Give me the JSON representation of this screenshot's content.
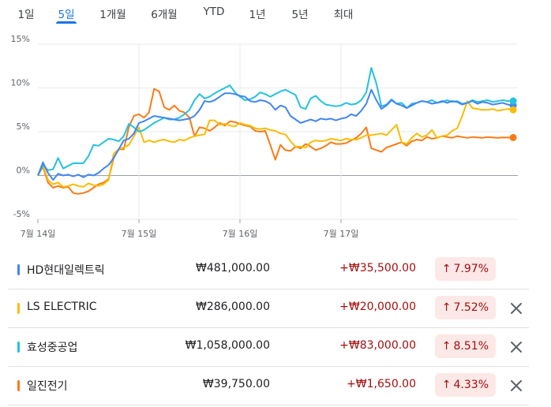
{
  "tabs": [
    {
      "label": "1일",
      "active": false
    },
    {
      "label": "5일",
      "active": true
    },
    {
      "label": "1개월",
      "active": false
    },
    {
      "label": "6개월",
      "active": false
    },
    {
      "label": "YTD",
      "active": false
    },
    {
      "label": "1년",
      "active": false
    },
    {
      "label": "5년",
      "active": false
    },
    {
      "label": "최대",
      "active": false
    }
  ],
  "chart_data": {
    "type": "line",
    "y_unit": "%",
    "ylim": [
      -5,
      15
    ],
    "y_ticks": [
      -5,
      0,
      5,
      10,
      15
    ],
    "y_tick_labels": [
      "-5%",
      "0%",
      "5%",
      "10%",
      "15%"
    ],
    "x_ticks": [
      0,
      20,
      40,
      60
    ],
    "x_tick_labels": [
      "7월 14일",
      "7월 15일",
      "7월 16일",
      "7월 17일"
    ],
    "xlim": [
      0,
      95
    ],
    "grid": true,
    "series": [
      {
        "name": "HD현대일렉트릭",
        "color": "#4285f4",
        "x": [
          0,
          1,
          2,
          3,
          4,
          5,
          6,
          7,
          8,
          9,
          10,
          11,
          12,
          13,
          14,
          15,
          16,
          17,
          18,
          19,
          20,
          21,
          22,
          23,
          24,
          25,
          26,
          27,
          28,
          29,
          30,
          31,
          32,
          33,
          34,
          35,
          36,
          37,
          38,
          39,
          40,
          41,
          42,
          43,
          44,
          45,
          46,
          47,
          48,
          49,
          50,
          51,
          52,
          53,
          54,
          55,
          56,
          57,
          58,
          59,
          60,
          61,
          62,
          63,
          64,
          65,
          66,
          67,
          68,
          69,
          70,
          71,
          72,
          73,
          74,
          75,
          76,
          77,
          78,
          79,
          80,
          81,
          82,
          83,
          84,
          85,
          86,
          87,
          88,
          89,
          90,
          91,
          92,
          93,
          94
        ],
        "values": [
          0,
          1.5,
          0.3,
          -0.5,
          0.2,
          0,
          0.1,
          -0.1,
          0.1,
          -0.2,
          0.1,
          0,
          0.3,
          0.8,
          1.2,
          2,
          3,
          4,
          4.2,
          4.8,
          6,
          6.2,
          6.5,
          6.8,
          6.7,
          6.6,
          6.5,
          6.4,
          6.3,
          6.4,
          6.5,
          6.8,
          7.5,
          8.5,
          8.4,
          8.6,
          9,
          9.4,
          9.4,
          9.3,
          9.1,
          9,
          8.5,
          8.4,
          8.6,
          8.5,
          8.2,
          7.5,
          8,
          7.8,
          6.8,
          6.4,
          6,
          6.2,
          6.4,
          6.2,
          6.5,
          6.4,
          6.5,
          6.3,
          6.5,
          6.6,
          7,
          6.8,
          7.4,
          8.2,
          9.8,
          8.6,
          7.6,
          8,
          8.6,
          8.2,
          8,
          7.7,
          8,
          8.3,
          8.5,
          8.4,
          8.2,
          8.3,
          8.5,
          8.3,
          8.5,
          8.4,
          8.1,
          8.3,
          8.5,
          8.2,
          8.4,
          8.3,
          8.1,
          8.2,
          8.3,
          8.1,
          8.0
        ]
      },
      {
        "name": "LS ELECTRIC",
        "color": "#fbbc04",
        "x": [
          0,
          1,
          2,
          3,
          4,
          5,
          6,
          7,
          8,
          9,
          10,
          11,
          12,
          13,
          14,
          15,
          16,
          17,
          18,
          19,
          20,
          21,
          22,
          23,
          24,
          25,
          26,
          27,
          28,
          29,
          30,
          31,
          32,
          33,
          34,
          35,
          36,
          37,
          38,
          39,
          40,
          41,
          42,
          43,
          44,
          45,
          46,
          47,
          48,
          49,
          50,
          51,
          52,
          53,
          54,
          55,
          56,
          57,
          58,
          59,
          60,
          61,
          62,
          63,
          64,
          65,
          66,
          67,
          68,
          69,
          70,
          71,
          72,
          73,
          74,
          75,
          76,
          77,
          78,
          79,
          80,
          81,
          82,
          83,
          84,
          85,
          86,
          87,
          88,
          89,
          90,
          91,
          92,
          93,
          94
        ],
        "values": [
          0,
          1.2,
          -0.5,
          -1,
          -0.8,
          -1.3,
          -1.2,
          -1,
          -1.2,
          -1.3,
          -0.9,
          -1.1,
          -1.2,
          -1,
          -0.5,
          2.5,
          3,
          3.2,
          3.5,
          4.5,
          5.5,
          3.8,
          4,
          3.8,
          4,
          4.1,
          3.9,
          3.8,
          4.1,
          4,
          4.3,
          4.5,
          4.6,
          4.7,
          6.3,
          6.3,
          5.8,
          5.9,
          5.7,
          5.6,
          6,
          5.8,
          5.7,
          5.4,
          5.3,
          5.4,
          5.2,
          5.1,
          4.8,
          4.7,
          3.9,
          3.3,
          3.3,
          3.2,
          3.8,
          4,
          3.9,
          4,
          4.2,
          4.1,
          4,
          4.2,
          4.1,
          4.1,
          4.3,
          4.6,
          4.6,
          4.7,
          4.8,
          4.6,
          5.2,
          5.8,
          3.8,
          3.6,
          4.3,
          4.8,
          4.4,
          4.6,
          5.2,
          4.3,
          4.5,
          4.6,
          5.1,
          5.4,
          6.8,
          8.5,
          7.7,
          7.6,
          7.5,
          7.5,
          7.6,
          7.4,
          7.5,
          7.6,
          7.5
        ]
      },
      {
        "name": "효성중공업",
        "color": "#24c1e0",
        "x": [
          0,
          1,
          2,
          3,
          4,
          5,
          6,
          7,
          8,
          9,
          10,
          11,
          12,
          13,
          14,
          15,
          16,
          17,
          18,
          19,
          20,
          21,
          22,
          23,
          24,
          25,
          26,
          27,
          28,
          29,
          30,
          31,
          32,
          33,
          34,
          35,
          36,
          37,
          38,
          39,
          40,
          41,
          42,
          43,
          44,
          45,
          46,
          47,
          48,
          49,
          50,
          51,
          52,
          53,
          54,
          55,
          56,
          57,
          58,
          59,
          60,
          61,
          62,
          63,
          64,
          65,
          66,
          67,
          68,
          69,
          70,
          71,
          72,
          73,
          74,
          75,
          76,
          77,
          78,
          79,
          80,
          81,
          82,
          83,
          84,
          85,
          86,
          87,
          88,
          89,
          90,
          91,
          92,
          93,
          94
        ],
        "values": [
          0,
          1.2,
          0.6,
          0.7,
          2,
          0.8,
          1.1,
          1.4,
          1.4,
          1.4,
          2.2,
          3.5,
          3.4,
          3.8,
          4.2,
          4.1,
          3.9,
          4.5,
          5.9,
          5.5,
          5,
          5.2,
          5.6,
          6,
          6.3,
          6.6,
          6.4,
          6.4,
          6.6,
          7,
          7.5,
          8.6,
          9.3,
          8.8,
          9,
          9.4,
          9.7,
          10,
          10.3,
          9.5,
          9,
          8.6,
          8.7,
          9,
          9.5,
          9.3,
          9,
          9.3,
          9.6,
          9.8,
          9.5,
          9.2,
          7.8,
          7.6,
          8.8,
          9.1,
          8.5,
          8.1,
          8,
          7.9,
          8,
          8.3,
          8.1,
          8.2,
          8.6,
          9.5,
          12.3,
          10.5,
          7.9,
          8.1,
          8.7,
          8.2,
          8.3,
          7.7,
          8.2,
          8.3,
          8.5,
          8.4,
          8.6,
          8.3,
          8.4,
          8.6,
          8.4,
          8.5,
          8.2,
          8.3,
          8.6,
          8.4,
          8.5,
          8.6,
          8.4,
          8.5,
          8.6,
          8.5,
          8.51
        ]
      },
      {
        "name": "일진전기",
        "color": "#fa7b17",
        "x": [
          0,
          1,
          2,
          3,
          4,
          5,
          6,
          7,
          8,
          9,
          10,
          11,
          12,
          13,
          14,
          15,
          16,
          17,
          18,
          19,
          20,
          21,
          22,
          23,
          24,
          25,
          26,
          27,
          28,
          29,
          30,
          31,
          32,
          33,
          34,
          35,
          36,
          37,
          38,
          39,
          40,
          41,
          42,
          43,
          44,
          45,
          46,
          47,
          48,
          49,
          50,
          51,
          52,
          53,
          54,
          55,
          56,
          57,
          58,
          59,
          60,
          61,
          62,
          63,
          64,
          65,
          66,
          67,
          68,
          69,
          70,
          71,
          72,
          73,
          74,
          75,
          76,
          77,
          78,
          79,
          80,
          81,
          82,
          83,
          84,
          85,
          86,
          87,
          88,
          89,
          90,
          91,
          92,
          93,
          94
        ],
        "values": [
          0,
          1,
          -0.8,
          -1.4,
          -1.2,
          -1.4,
          -1.3,
          -2,
          -2.1,
          -2,
          -1.8,
          -1.4,
          -1,
          -0.8,
          -0.4,
          2,
          3,
          3,
          5.5,
          6.8,
          7,
          6.6,
          7.2,
          9.9,
          9.6,
          7.8,
          7.5,
          8,
          7.4,
          7.2,
          6.6,
          4.5,
          5.5,
          5.4,
          5.1,
          5.5,
          6,
          5.7,
          6.2,
          6.1,
          5.9,
          5.7,
          5.6,
          5.1,
          5,
          5.1,
          3.5,
          1.8,
          3.5,
          2.9,
          2.8,
          3.3,
          3.1,
          3.6,
          3.3,
          2.9,
          3.1,
          3.4,
          3.8,
          3.6,
          3.6,
          3.7,
          4,
          4.3,
          4.8,
          5.5,
          3.1,
          2.9,
          2.7,
          3.2,
          3.4,
          3.6,
          3.8,
          3.4,
          3.9,
          4.1,
          4,
          4.4,
          4.2,
          4.3,
          4.5,
          4.4,
          4.3,
          4.5,
          4.4,
          4.3,
          4.4,
          4.35,
          4.3,
          4.4,
          4.35,
          4.3,
          4.35,
          4.33,
          4.33
        ]
      }
    ]
  },
  "rows": [
    {
      "name": "HD현대일렉트릭",
      "color": "#4285f4",
      "price": "₩481,000.00",
      "change": "+₩35,500.00",
      "percent": "7.97%",
      "arrow": "↑",
      "removable": false
    },
    {
      "name": "LS ELECTRIC",
      "color": "#fbbc04",
      "price": "₩286,000.00",
      "change": "+₩20,000.00",
      "percent": "7.52%",
      "arrow": "↑",
      "removable": true
    },
    {
      "name": "효성중공업",
      "color": "#24c1e0",
      "price": "₩1,058,000.00",
      "change": "+₩83,000.00",
      "percent": "8.51%",
      "arrow": "↑",
      "removable": true
    },
    {
      "name": "일진전기",
      "color": "#fa7b17",
      "price": "₩39,750.00",
      "change": "+₩1,650.00",
      "percent": "4.33%",
      "arrow": "↑",
      "removable": true
    }
  ]
}
